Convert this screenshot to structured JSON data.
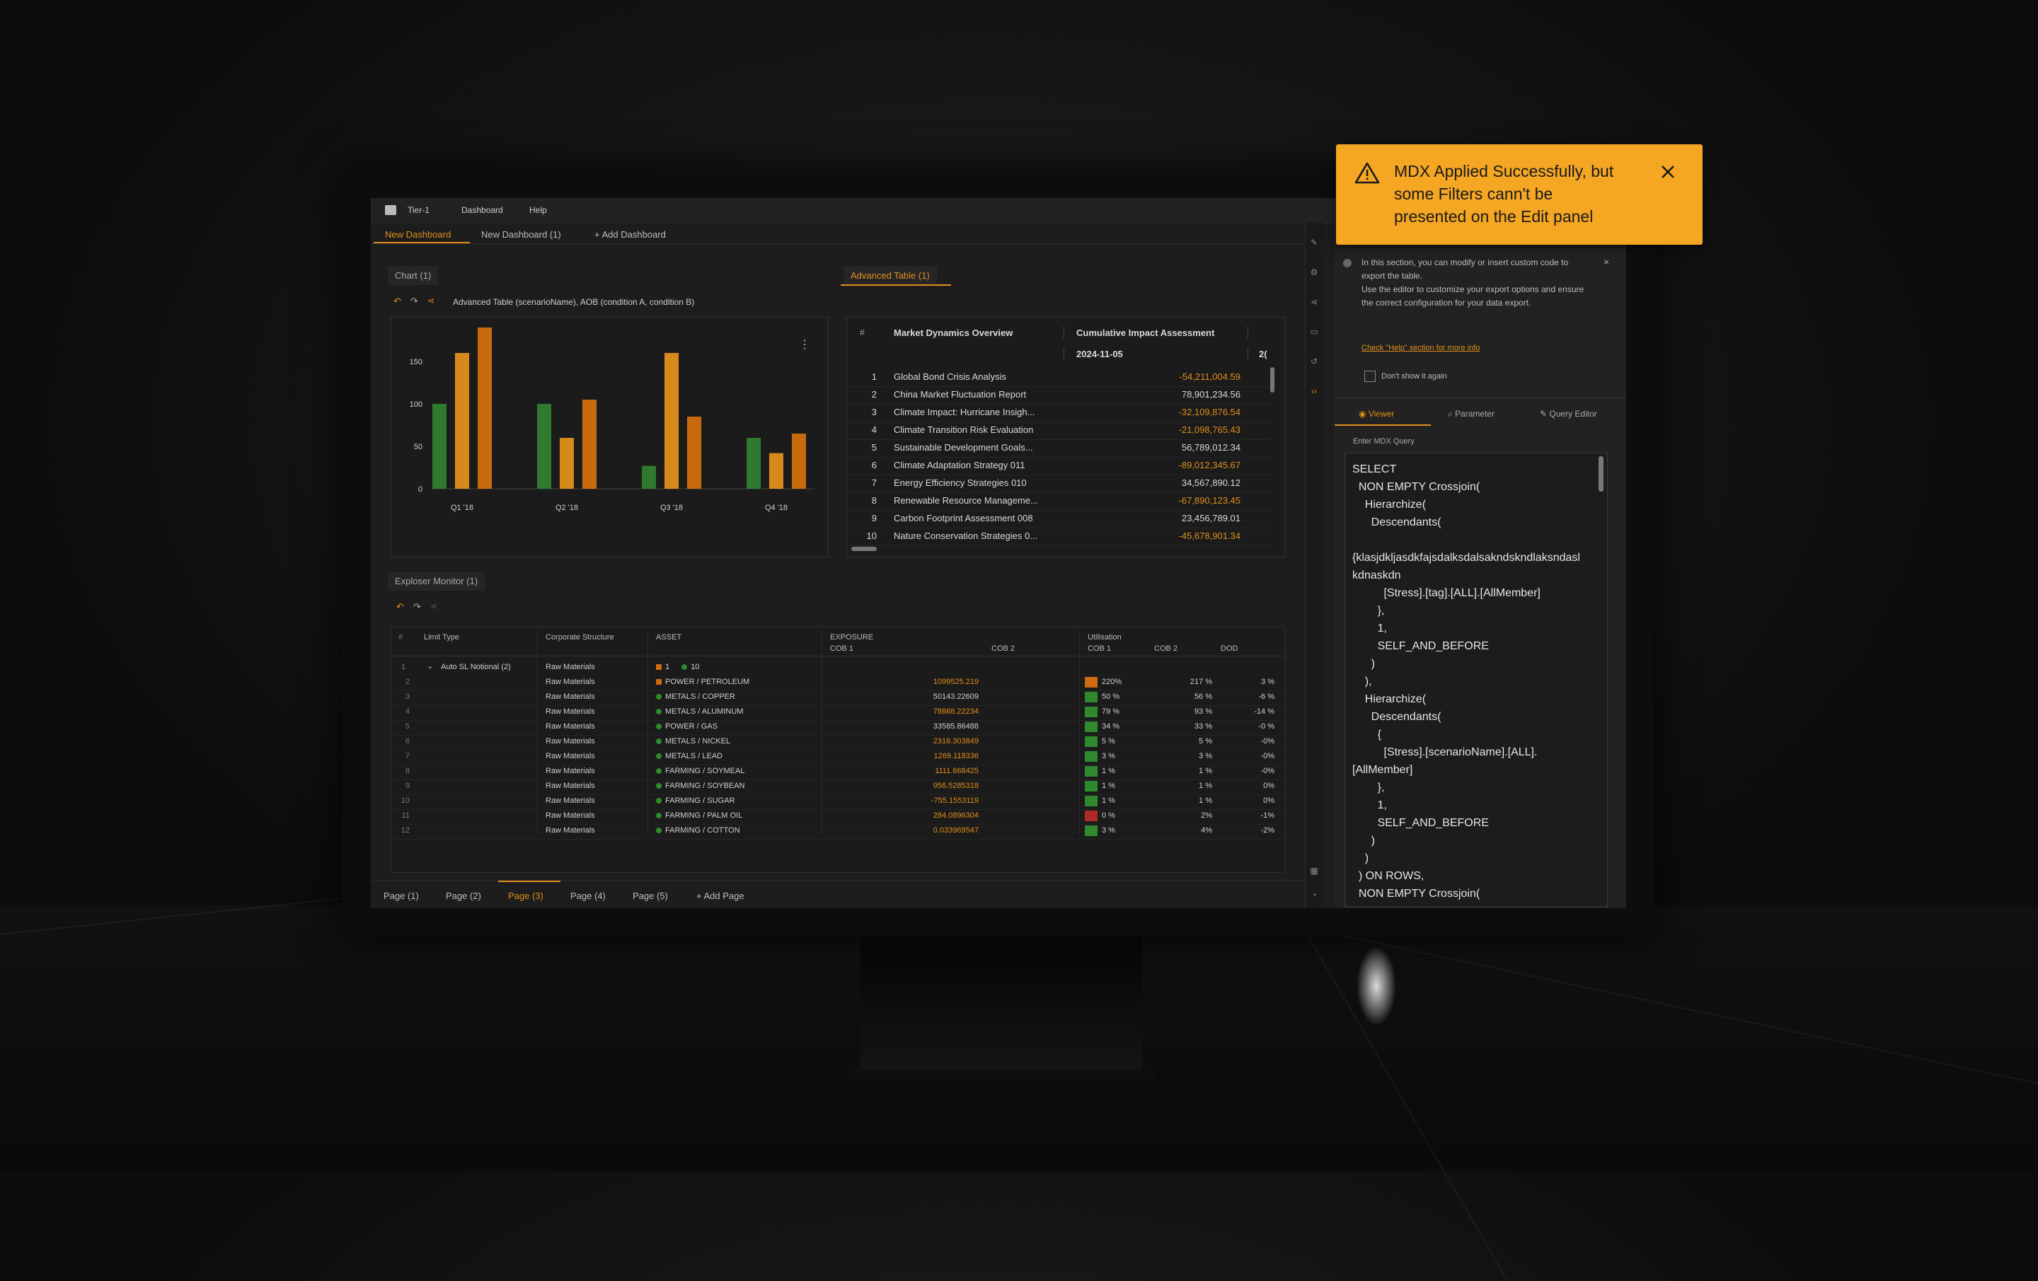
{
  "app": {
    "title": "Tier-1",
    "menu": [
      "Dashboard",
      "Help"
    ]
  },
  "dashboard_tabs": [
    "New Dashboard",
    "New Dashboard (1)",
    "+ Add Dashboard"
  ],
  "chart_panel": {
    "tab": "Chart (1)",
    "subtitle": "Advanced Table (scenarioName), AOB (condition A, condition B)"
  },
  "chart_data": {
    "type": "bar",
    "categories": [
      "Q1 '18",
      "Q2 '18",
      "Q3 '18",
      "Q4 '18"
    ],
    "series": [
      {
        "values": [
          100,
          100,
          27,
          60
        ],
        "color": "#2f7a2f"
      },
      {
        "values": [
          160,
          60,
          160,
          42
        ],
        "color": "#d68a1c"
      },
      {
        "values": [
          190,
          105,
          85,
          65
        ],
        "color": "#c86b0f"
      }
    ],
    "yticks": [
      "150",
      "100",
      "50",
      "0"
    ],
    "ylim": [
      0,
      190
    ],
    "grid": false
  },
  "advanced_table": {
    "tab": "Advanced Table (1)",
    "headers": {
      "index": "#",
      "name": "Market Dynamics Overview",
      "impact": "Cumulative Impact Assessment",
      "date": "2024-11-05",
      "extra": "2("
    },
    "rows": [
      {
        "n": "1",
        "name": "Global Bond Crisis Analysis",
        "value": "-54,211,004.59",
        "neg": true
      },
      {
        "n": "2",
        "name": "China Market Fluctuation Report",
        "value": "78,901,234.56",
        "neg": false
      },
      {
        "n": "3",
        "name": "Climate Impact: Hurricane Insigh...",
        "value": "-32,109,876.54",
        "neg": true
      },
      {
        "n": "4",
        "name": "Climate Transition Risk Evaluation",
        "value": "-21,098,765.43",
        "neg": true
      },
      {
        "n": "5",
        "name": "Sustainable Development Goals...",
        "value": "56,789,012.34",
        "neg": false
      },
      {
        "n": "6",
        "name": "Climate Adaptation Strategy 011",
        "value": "-89,012,345.67",
        "neg": true
      },
      {
        "n": "7",
        "name": "Energy Efficiency Strategies 010",
        "value": "34,567,890.12",
        "neg": false
      },
      {
        "n": "8",
        "name": "Renewable Resource Manageme...",
        "value": "-67,890,123.45",
        "neg": true
      },
      {
        "n": "9",
        "name": "Carbon Footprint Assessment 008",
        "value": "23,456,789.01",
        "neg": false
      },
      {
        "n": "10",
        "name": "Nature Conservation Strategies 0...",
        "value": "-45,678,901.34",
        "neg": true
      }
    ]
  },
  "explorer": {
    "tab": "Exploser Monitor (1)",
    "headers": {
      "index": "#",
      "limit": "Limit Type",
      "corp": "Corporate Structure",
      "asset": "ASSET",
      "exposure": "EXPOSURE",
      "cob1": "COB 1",
      "cob2": "COB 2",
      "util": "Utilisation",
      "ucob1": "COB 1",
      "ucob2": "COB 2",
      "dod": "DOD"
    },
    "group_row": {
      "n": "1",
      "limit": "Auto SL Notional (2)",
      "corp": "Raw Materials",
      "a": "1",
      "b": "10"
    },
    "rows": [
      {
        "n": "2",
        "corp": "Raw Materials",
        "asset": "POWER / PETROLEUM",
        "exp": "1099525.219",
        "expneg": true,
        "u1": "220%",
        "u2": "217 %",
        "dod": "3 %",
        "ucolor": "#d06a10",
        "acolor": "#d06a10"
      },
      {
        "n": "3",
        "corp": "Raw Materials",
        "asset": "METALS / COPPER",
        "exp": "50143.22609",
        "expneg": false,
        "u1": "50 %",
        "u2": "56 %",
        "dod": "-6 %",
        "ucolor": "#2f8a2f",
        "acolor": "#2f8a2f"
      },
      {
        "n": "4",
        "corp": "Raw Materials",
        "asset": "METALS / ALUMINUM",
        "exp": "78868.22234",
        "expneg": true,
        "u1": "79 %",
        "u2": "93 %",
        "dod": "-14 %",
        "ucolor": "#2f8a2f",
        "acolor": "#2f8a2f"
      },
      {
        "n": "5",
        "corp": "Raw Materials",
        "asset": "POWER / GAS",
        "exp": "33585.86488",
        "expneg": false,
        "u1": "34 %",
        "u2": "33 %",
        "dod": "-0 %",
        "ucolor": "#2f8a2f",
        "acolor": "#2f8a2f"
      },
      {
        "n": "6",
        "corp": "Raw Materials",
        "asset": "METALS / NICKEL",
        "exp": "2316.303849",
        "expneg": true,
        "u1": "5 %",
        "u2": "5 %",
        "dod": "-0%",
        "ucolor": "#2f8a2f",
        "acolor": "#2f8a2f"
      },
      {
        "n": "7",
        "corp": "Raw Materials",
        "asset": "METALS / LEAD",
        "exp": "1269.118336",
        "expneg": true,
        "u1": "3 %",
        "u2": "3 %",
        "dod": "-0%",
        "ucolor": "#2f8a2f",
        "acolor": "#2f8a2f"
      },
      {
        "n": "8",
        "corp": "Raw Materials",
        "asset": "FARMING / SOYMEAL",
        "exp": "1111.668425",
        "expneg": true,
        "u1": "1 %",
        "u2": "1 %",
        "dod": "-0%",
        "ucolor": "#2f8a2f",
        "acolor": "#2f8a2f"
      },
      {
        "n": "9",
        "corp": "Raw Materials",
        "asset": "FARMING / SOYBEAN",
        "exp": "956.5285318",
        "expneg": true,
        "u1": "1 %",
        "u2": "1 %",
        "dod": "0%",
        "ucolor": "#2f8a2f",
        "acolor": "#2f8a2f"
      },
      {
        "n": "10",
        "corp": "Raw Materials",
        "asset": "FARMING / SUGAR",
        "exp": "-755.1553119",
        "expneg": true,
        "u1": "1 %",
        "u2": "1 %",
        "dod": "0%",
        "ucolor": "#2f8a2f",
        "acolor": "#2f8a2f"
      },
      {
        "n": "11",
        "corp": "Raw Materials",
        "asset": "FARMING / PALM OIL",
        "exp": "284.0896304",
        "expneg": true,
        "u1": "0 %",
        "u2": "2%",
        "dod": "-1%",
        "ucolor": "#b02a2a",
        "acolor": "#2f8a2f"
      },
      {
        "n": "12",
        "corp": "Raw Materials",
        "asset": "FARMING / COTTON",
        "exp": "0.033969547",
        "expneg": true,
        "u1": "3 %",
        "u2": "4%",
        "dod": "-2%",
        "ucolor": "#2f8a2f",
        "acolor": "#2f8a2f"
      }
    ]
  },
  "page_tabs": [
    "Page (1)",
    "Page (2)",
    "Page (3)",
    "Page (4)",
    "Page (5)",
    "+ Add Page"
  ],
  "editor": {
    "info": "In this section, you can modify or insert custom code to export the table.\nUse the editor to customize your export options and ensure the correct configuration for your data export.",
    "help_link": "Check \"Help\" section for more info",
    "dont_show": "Don't show it again",
    "tabs": [
      "Viewer",
      "Parameter",
      "Query Editor"
    ],
    "query_label": "Enter MDX Query",
    "query": "SELECT\n  NON EMPTY Crossjoin(\n    Hierarchize(\n      Descendants(\n\n{klasjdkljasdkfajsdalksdalsakndskndlaksndasl kdnaskdn\n          [Stress].[tag].[ALL].[AllMember]\n        },\n        1,\n        SELF_AND_BEFORE\n      )\n    ),\n    Hierarchize(\n      Descendants(\n        {\n          [Stress].[scenarioName].[ALL].\n[AllMember]\n        },\n        1,\n        SELF_AND_BEFORE\n      )\n    )\n  ) ON ROWS,\n  NON EMPTY Crossjoin(\n    ("
  },
  "toast": {
    "message": "MDX Applied Successfully, but some Filters cann't be presented on the Edit panel"
  },
  "colors": {
    "accent": "#e08e1a",
    "toast": "#f5a623",
    "green": "#2f7a2f"
  }
}
